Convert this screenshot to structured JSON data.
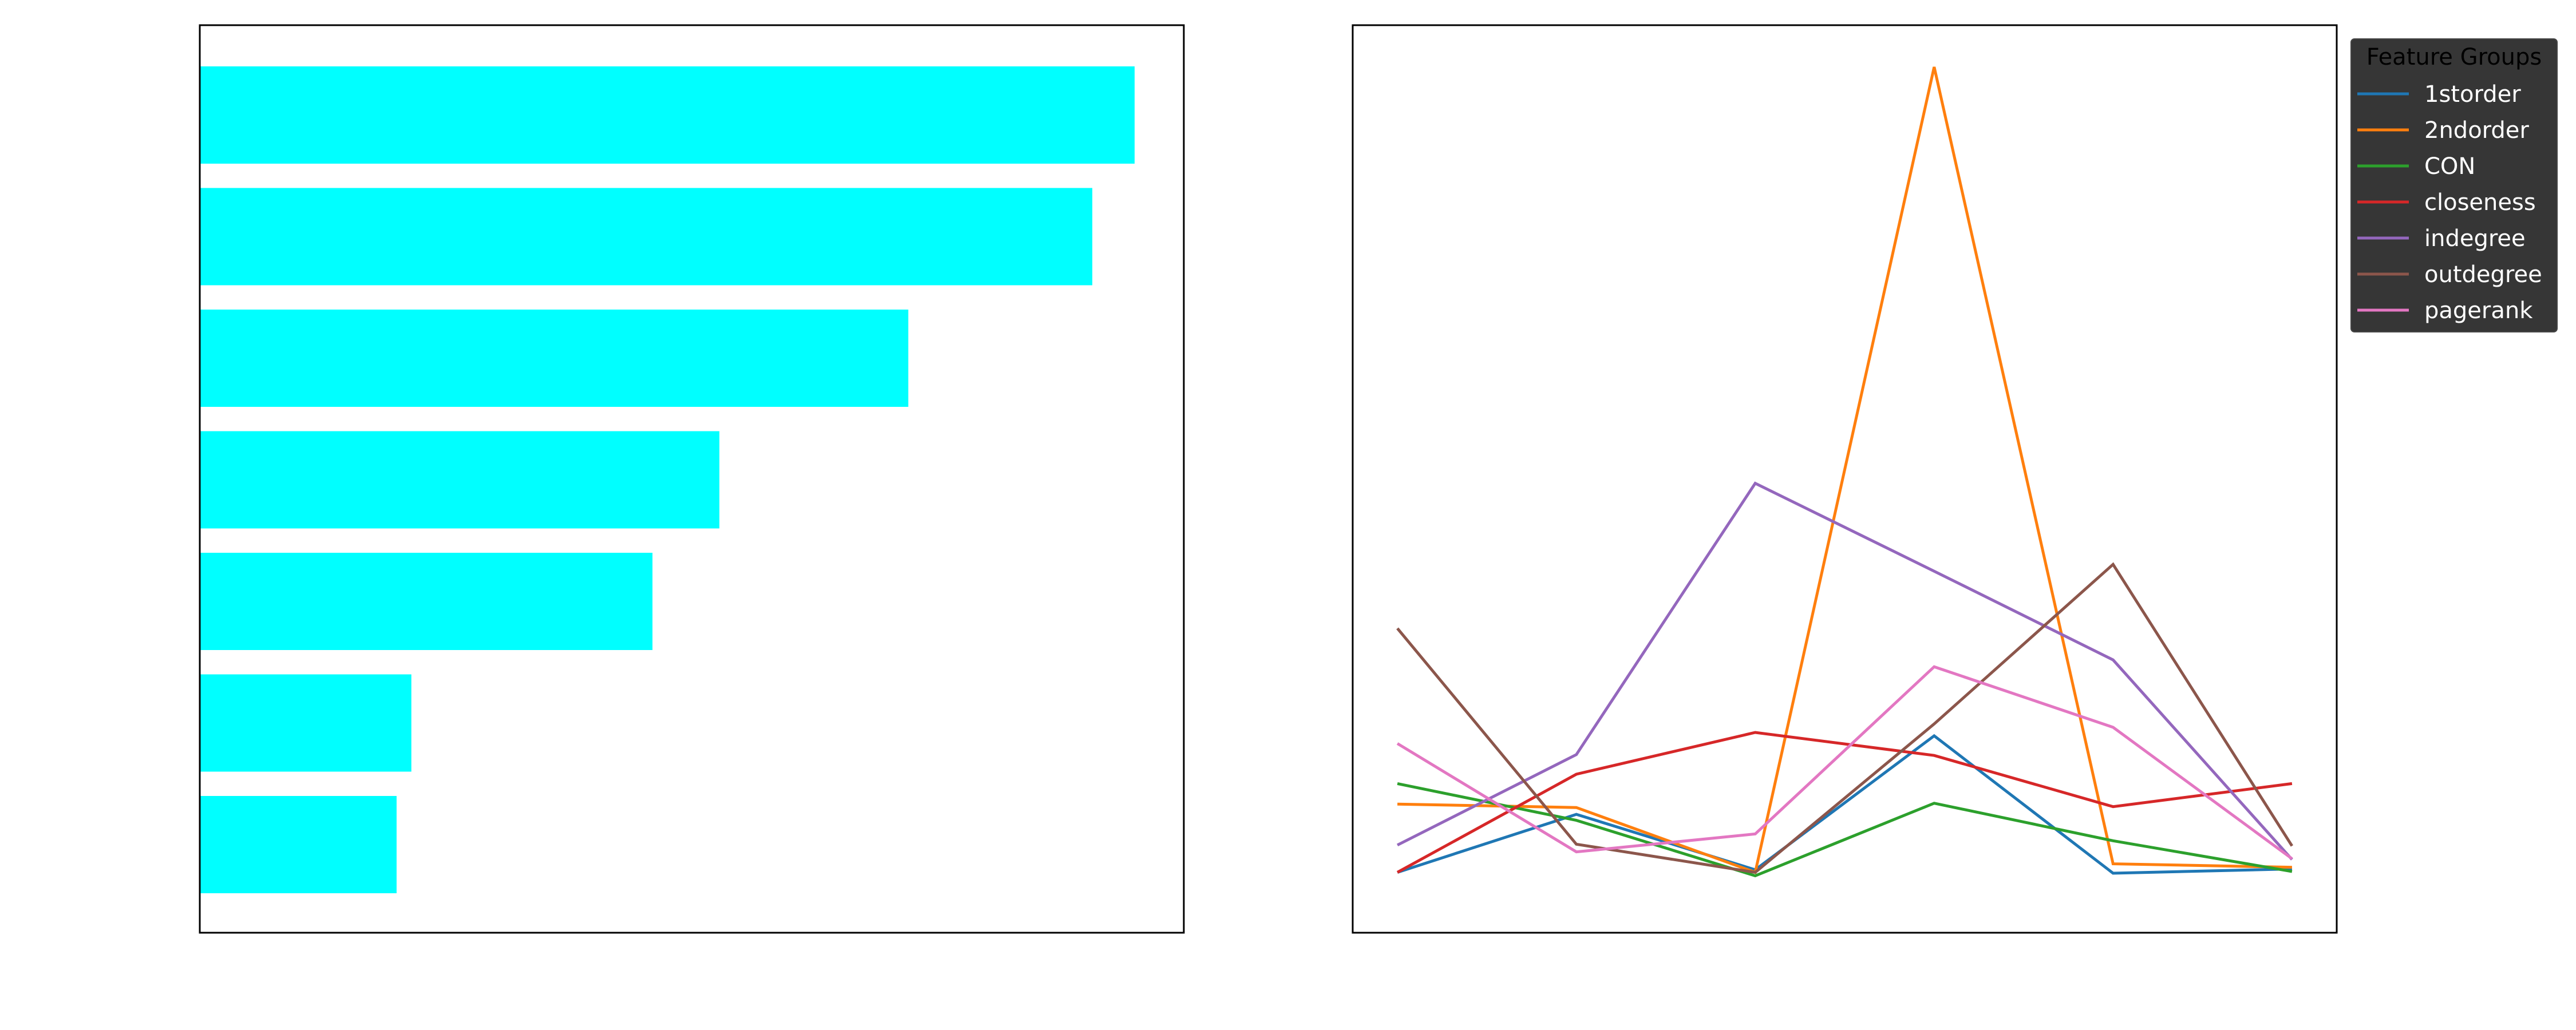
{
  "chart_data": [
    {
      "type": "bar",
      "orientation": "horizontal",
      "color": "#00FFFF",
      "values": [
        0.95,
        0.907,
        0.72,
        0.528,
        0.46,
        0.215,
        0.2
      ],
      "xlim": [
        0,
        1.0
      ],
      "grid": false
    },
    {
      "type": "line",
      "x": [
        0,
        1,
        2,
        3,
        4,
        5
      ],
      "xlim": [
        -0.25,
        5.25
      ],
      "ylim": [
        0,
        1.0
      ],
      "grid": false,
      "legend": {
        "title": "Feature Groups",
        "placement": "outside-top-right"
      },
      "series": [
        {
          "name": "1storder",
          "color": "#1f77b4",
          "values": [
            0.056,
            0.124,
            0.059,
            0.216,
            0.055,
            0.06
          ]
        },
        {
          "name": "2ndorder",
          "color": "#ff7f0e",
          "values": [
            0.136,
            0.132,
            0.056,
            1.0,
            0.066,
            0.062
          ]
        },
        {
          "name": "CON",
          "color": "#2ca02c",
          "values": [
            0.16,
            0.117,
            0.052,
            0.137,
            0.093,
            0.057
          ]
        },
        {
          "name": "closeness",
          "color": "#d62728",
          "values": [
            0.056,
            0.171,
            0.22,
            0.193,
            0.133,
            0.16
          ]
        },
        {
          "name": "indegree",
          "color": "#9467bd",
          "values": [
            0.088,
            0.194,
            0.512,
            0.409,
            0.305,
            0.071
          ]
        },
        {
          "name": "outdegree",
          "color": "#8c564b",
          "values": [
            0.342,
            0.089,
            0.056,
            0.23,
            0.417,
            0.087
          ]
        },
        {
          "name": "pagerank",
          "color": "#e377c2",
          "values": [
            0.207,
            0.08,
            0.101,
            0.297,
            0.226,
            0.072
          ]
        }
      ]
    }
  ]
}
